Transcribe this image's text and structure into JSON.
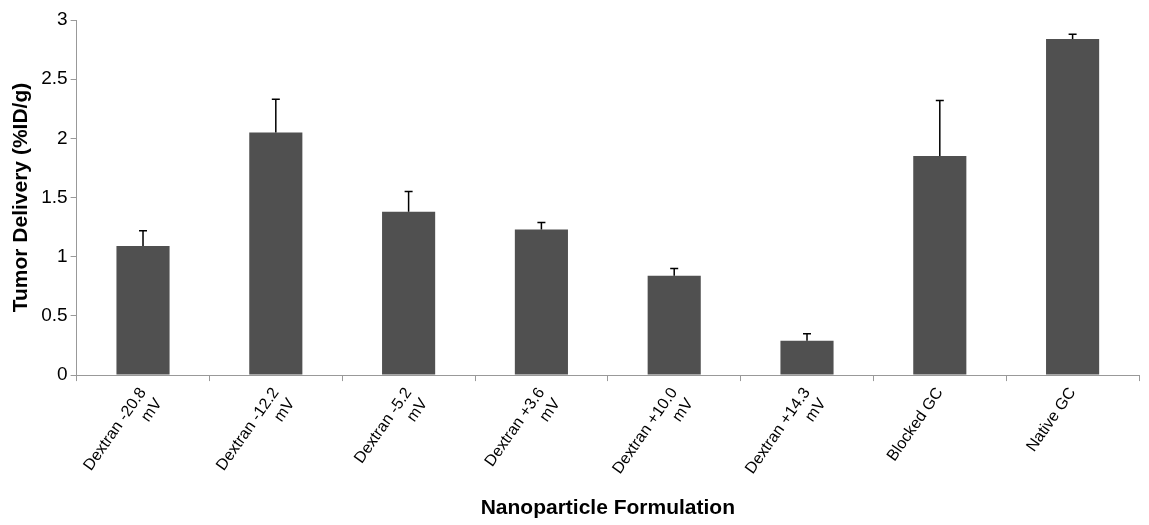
{
  "chart_data": {
    "type": "bar",
    "xlabel": "Nanoparticle Formulation",
    "ylabel": "Tumor Delivery (%ID/g)",
    "categories": [
      "Dextran -20.8 mV",
      "Dextran -12.2 mV",
      "Dextran -5.2 mV",
      "Dextran +3.6 mV",
      "Dextran +10.0 mV",
      "Dextran +14.3 mV",
      "Blocked GC",
      "Native GC"
    ],
    "values": [
      1.09,
      2.05,
      1.38,
      1.23,
      0.84,
      0.29,
      1.85,
      2.84
    ],
    "errors": [
      [
        1.09,
        1.22
      ],
      [
        2.05,
        2.33
      ],
      [
        1.38,
        1.55
      ],
      [
        1.23,
        1.29
      ],
      [
        0.84,
        0.9
      ],
      [
        0.29,
        0.35
      ],
      [
        1.85,
        2.32
      ],
      [
        2.84,
        2.88
      ]
    ],
    "color": "#505050",
    "ylim": [
      0,
      3
    ],
    "yticks": [
      0,
      0.5,
      1,
      1.5,
      2,
      2.5,
      3
    ],
    "grid": false,
    "legend": false
  }
}
